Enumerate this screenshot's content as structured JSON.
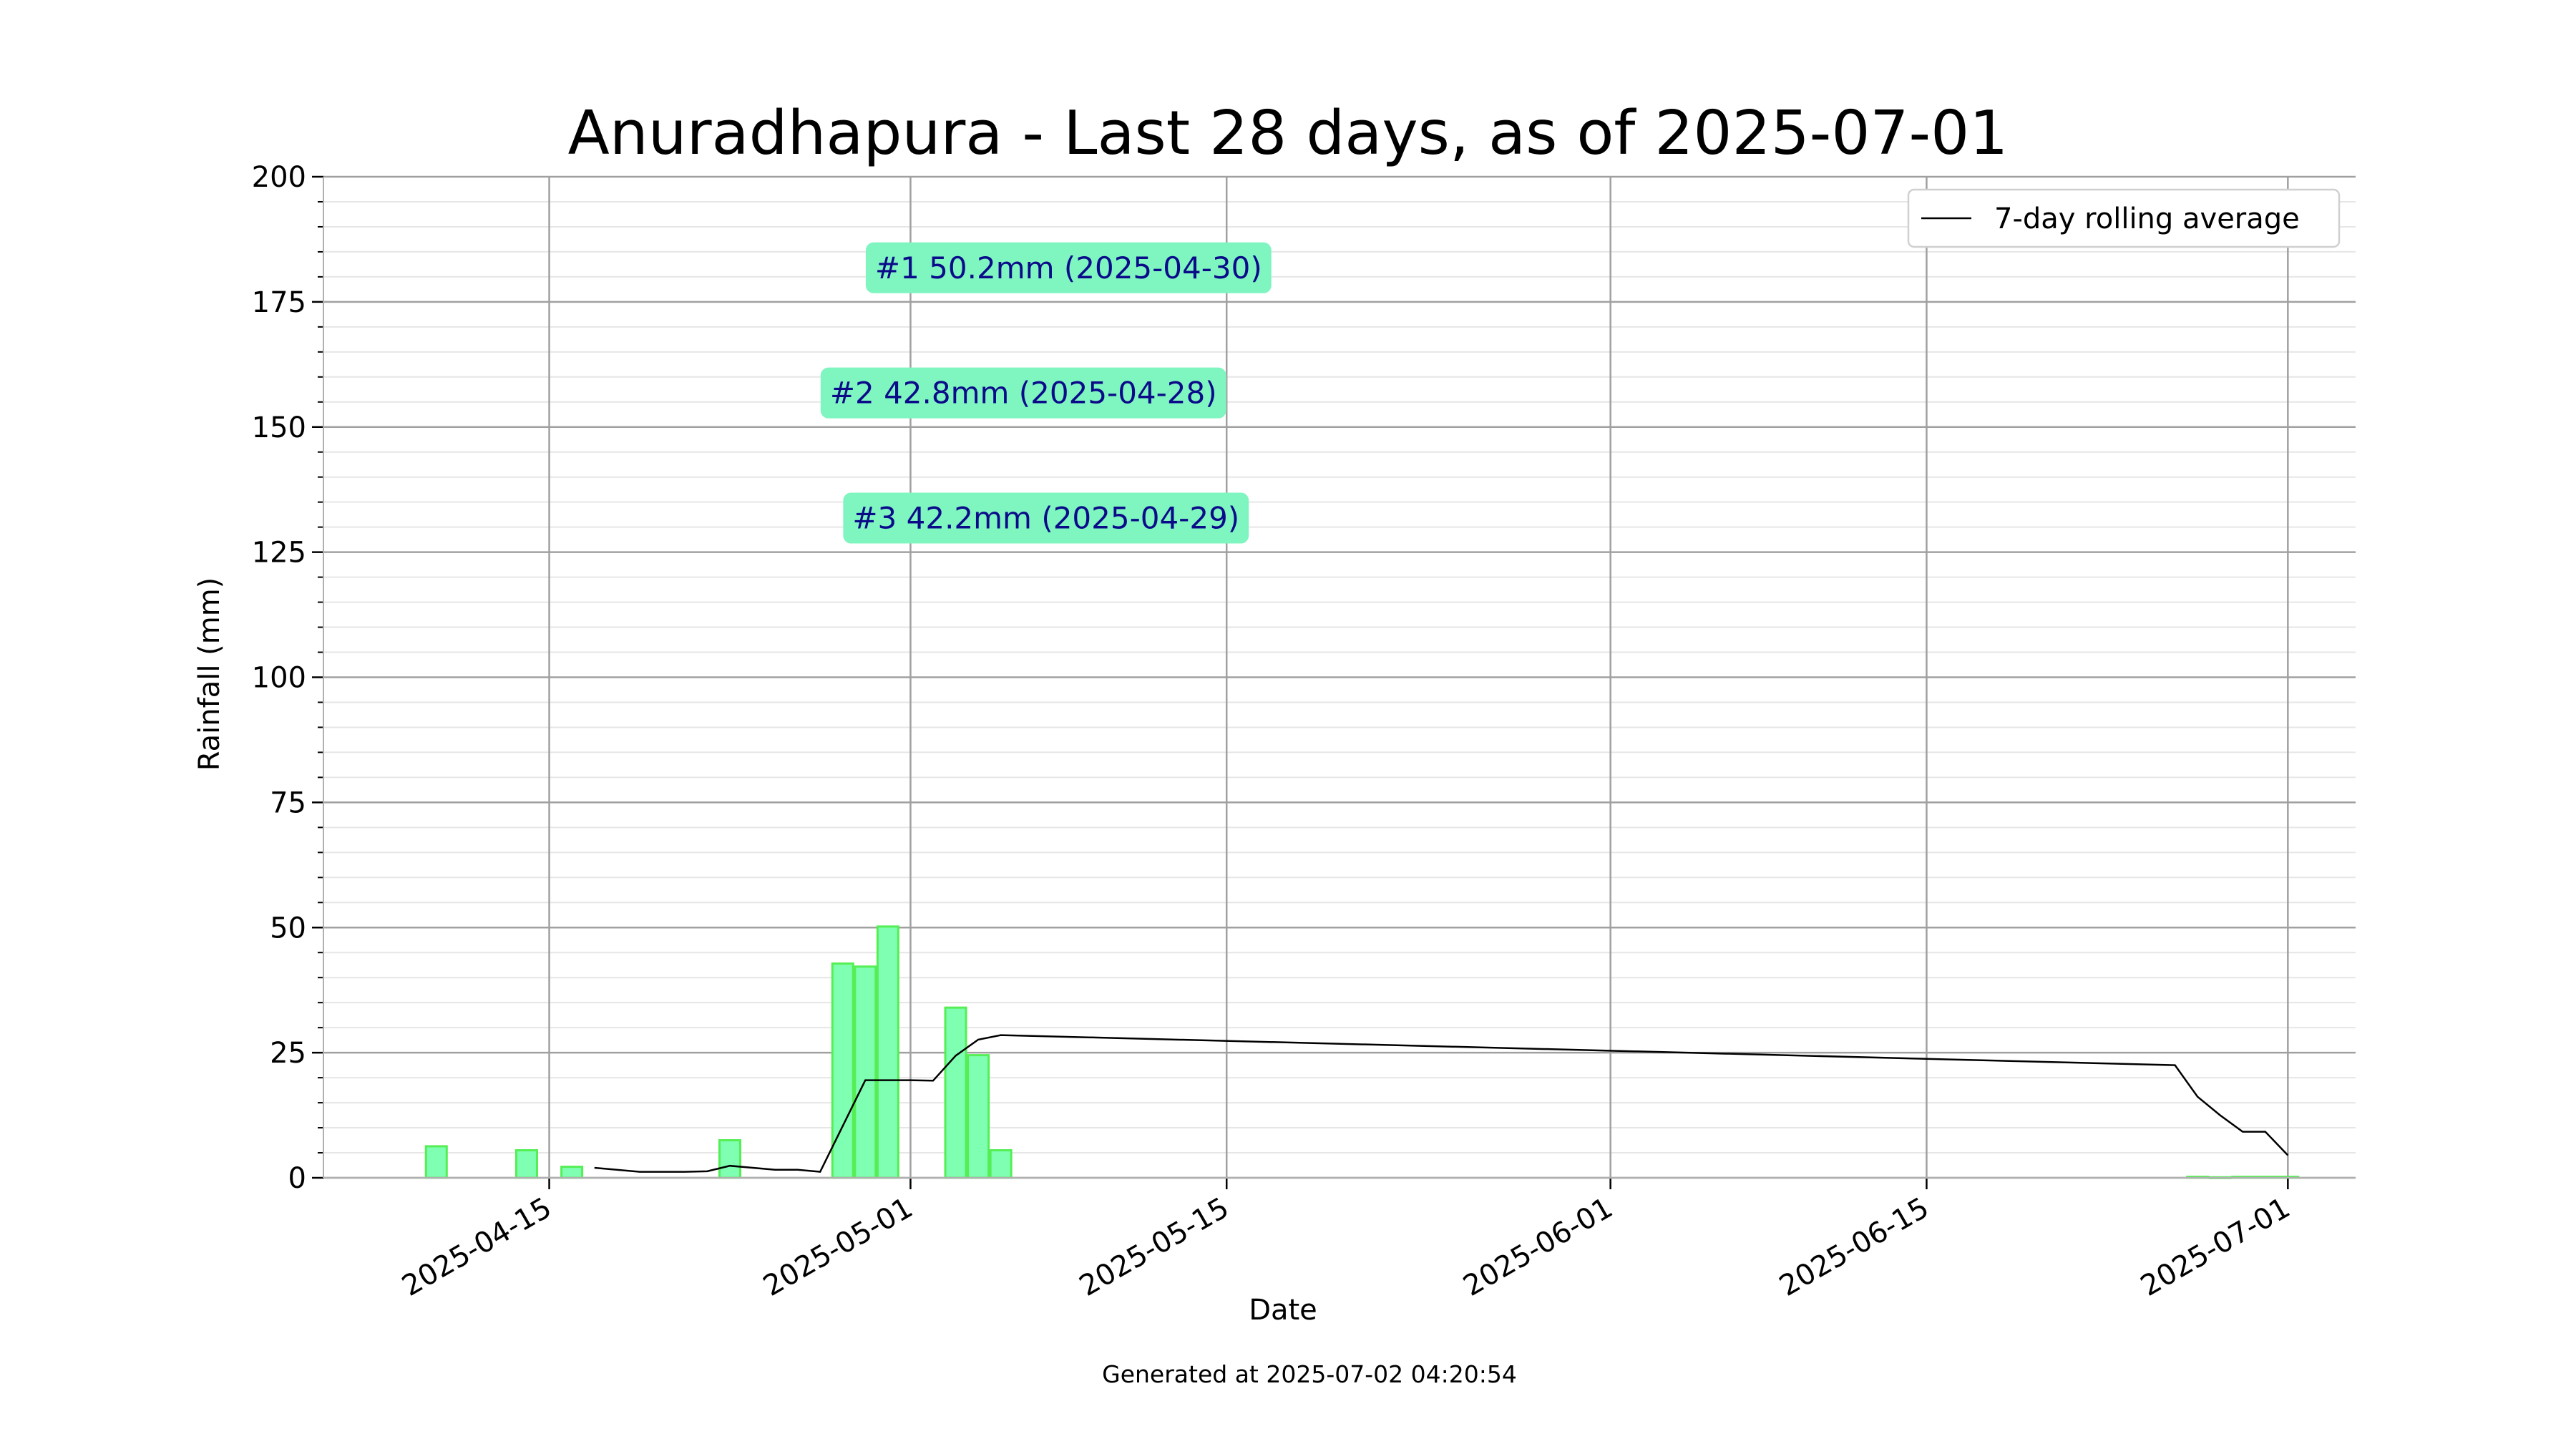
{
  "footer": "Generated at 2025-07-02 04:20:54",
  "chart_data": {
    "type": "bar",
    "title": "Anuradhapura - Last 28 days, as of 2025-07-01",
    "xlabel": "Date",
    "ylabel": "Rainfall (mm)",
    "ylim": [
      0,
      200
    ],
    "xlim": [
      "2025-04-05",
      "2025-07-04"
    ],
    "yticks": [
      0,
      25,
      50,
      75,
      100,
      125,
      150,
      175,
      200
    ],
    "xticks": [
      "2025-04-15",
      "2025-05-01",
      "2025-05-15",
      "2025-06-01",
      "2025-06-15",
      "2025-07-01"
    ],
    "grid": true,
    "legend_position": "top-right",
    "colors": {
      "bar_fill": "#7fffb2",
      "bar_edge": "#55ee55",
      "annotation_bg": "#7ff5c0",
      "annotation_text": "#0b0b8a",
      "rolling_line": "#000000"
    },
    "series": [
      {
        "kind": "bar",
        "dates": [
          "2025-04-10",
          "2025-04-14",
          "2025-04-16",
          "2025-04-23",
          "2025-04-28",
          "2025-04-29",
          "2025-04-30",
          "2025-05-03",
          "2025-05-04",
          "2025-05-05",
          "2025-06-27",
          "2025-06-28",
          "2025-06-29",
          "2025-06-30",
          "2025-07-01"
        ],
        "values": [
          6.3,
          5.5,
          2.2,
          7.5,
          42.8,
          42.2,
          50.2,
          34.0,
          24.5,
          5.5,
          0.2,
          0.1,
          0.2,
          0.2,
          0.2
        ]
      },
      {
        "kind": "line",
        "name": "7-day rolling average",
        "dates": [
          "2025-04-17",
          "2025-04-19",
          "2025-04-21",
          "2025-04-22",
          "2025-04-23",
          "2025-04-25",
          "2025-04-26",
          "2025-04-27",
          "2025-04-29",
          "2025-05-01",
          "2025-05-02",
          "2025-05-03",
          "2025-05-04",
          "2025-05-05",
          "2025-06-26",
          "2025-06-27",
          "2025-06-28",
          "2025-06-29",
          "2025-06-30",
          "2025-07-01"
        ],
        "values": [
          2.0,
          1.2,
          1.2,
          1.3,
          2.4,
          1.6,
          1.6,
          1.2,
          19.5,
          19.5,
          19.4,
          24.4,
          27.6,
          28.5,
          22.5,
          16.2,
          12.5,
          9.2,
          9.2,
          4.5
        ]
      }
    ],
    "annotations": [
      {
        "label": "#1 50.2mm (2025-04-30)",
        "date": "2025-05-08",
        "y": 181.8
      },
      {
        "label": "#2 42.8mm (2025-04-28)",
        "date": "2025-05-06",
        "y": 156.8
      },
      {
        "label": "#3 42.2mm (2025-04-29)",
        "date": "2025-05-07",
        "y": 131.8
      }
    ]
  }
}
